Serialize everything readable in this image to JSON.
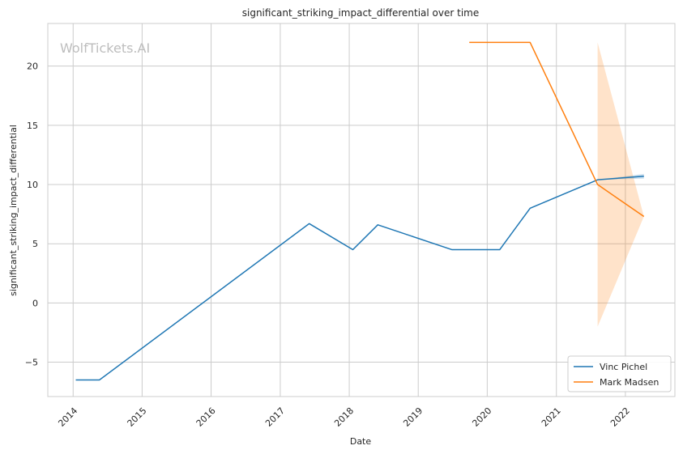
{
  "chart_data": {
    "type": "line",
    "title": "significant_striking_impact_differential over time",
    "xlabel": "Date",
    "ylabel": "significant_striking_impact_differential",
    "watermark": "WolfTickets.AI",
    "x_ticks": [
      "2014",
      "2015",
      "2016",
      "2017",
      "2018",
      "2019",
      "2020",
      "2021",
      "2022"
    ],
    "y_ticks": [
      {
        "value": -5,
        "label": "−5"
      },
      {
        "value": 0,
        "label": "0"
      },
      {
        "value": 5,
        "label": "5"
      },
      {
        "value": 10,
        "label": "10"
      },
      {
        "value": 15,
        "label": "15"
      },
      {
        "value": 20,
        "label": "20"
      }
    ],
    "xlim": [
      "2013-08-20",
      "2022-09-20"
    ],
    "ylim": [
      -7.9,
      23.6
    ],
    "grid": true,
    "legend_position": "lower-right",
    "series": [
      {
        "name": "Vinc Pichel",
        "color": "#1f77b4",
        "x": [
          "2014-01-15",
          "2014-05-20",
          "2017-06-03",
          "2018-01-20",
          "2018-06-01",
          "2019-06-29",
          "2020-03-07",
          "2020-08-15",
          "2021-08-07",
          "2022-04-09"
        ],
        "y": [
          -6.5,
          -6.5,
          6.7,
          4.5,
          6.6,
          4.5,
          4.5,
          8.0,
          10.4,
          10.7
        ],
        "band": {
          "x": [
            "2021-08-07",
            "2022-04-09"
          ],
          "lower": [
            10.4,
            10.5
          ],
          "upper": [
            10.4,
            10.9
          ]
        }
      },
      {
        "name": "Mark Madsen",
        "color": "#ff7f0e",
        "x": [
          "2019-09-28",
          "2020-08-15",
          "2021-08-07",
          "2022-04-09"
        ],
        "y": [
          22.0,
          22.0,
          10.0,
          7.3
        ],
        "band": {
          "x": [
            "2021-08-07",
            "2022-04-09"
          ],
          "lower": [
            -2.0,
            7.3
          ],
          "upper": [
            22.0,
            7.3
          ]
        }
      }
    ]
  }
}
